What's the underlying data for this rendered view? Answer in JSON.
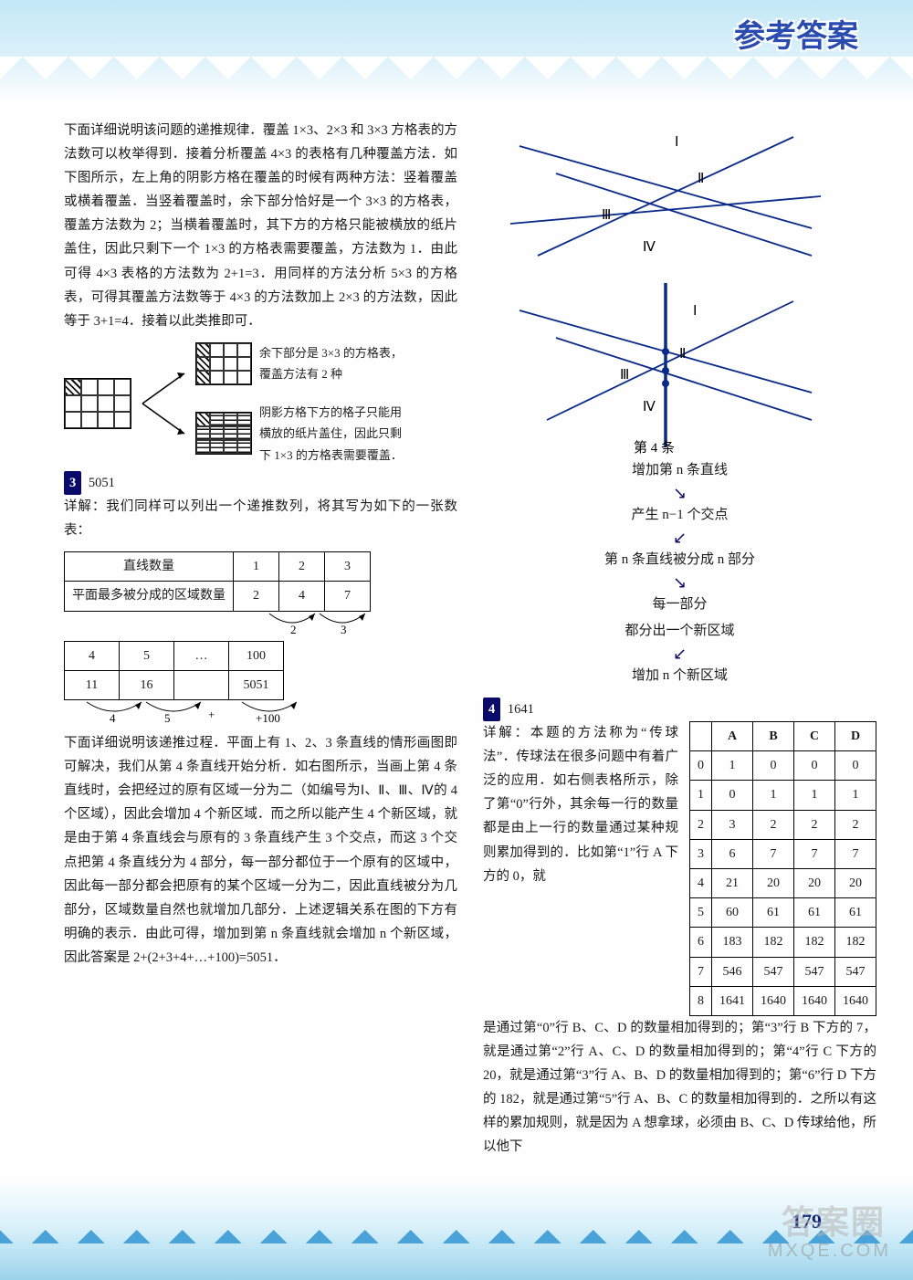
{
  "header": {
    "title": "参考答案"
  },
  "page_number": "179",
  "watermark": {
    "text": "答案圈",
    "url": "MXQE.COM"
  },
  "left": {
    "p1": "下面详细说明该问题的递推规律．覆盖 1×3、2×3 和 3×3 方格表的方法数可以枚举得到．接着分析覆盖 4×3 的表格有几种覆盖方法．如下图所示，左上角的阴影方格在覆盖的时候有两种方法：竖着覆盖或横着覆盖．当竖着覆盖时，余下部分恰好是一个 3×3 的方格表，覆盖方法数为 2；当横着覆盖时，其下方的方格只能被横放的纸片盖住，因此只剩下一个 1×3 的方格表需要覆盖，方法数为 1．由此可得 4×3 表格的方法数为 2+1=3．用同样的方法分析 5×3 的方格表，可得其覆盖方法数等于 4×3 的方法数加上 2×3 的方法数，因此等于 3+1=4．接着以此类推即可．",
    "fig_caption_a": "余下部分是 3×3 的方格表，覆盖方法有 2 种",
    "fig_caption_b": "阴影方格下方的格子只能用横放的纸片盖住，因此只剩下 1×3 的方格表需要覆盖．",
    "q3_num": "3",
    "q3_ans": "5051",
    "q3_detail": "详解：我们同样可以列出一个递推数列，将其写为如下的一张数表：",
    "table1": {
      "r1": [
        "直线数量",
        "1",
        "2",
        "3"
      ],
      "r2": [
        "平面最多被分成的区域数量",
        "2",
        "4",
        "7"
      ],
      "arcs": [
        "2",
        "3"
      ]
    },
    "table2": {
      "r1": [
        "4",
        "5",
        "…",
        "100"
      ],
      "r2": [
        "11",
        "16",
        "",
        "5051"
      ],
      "arcs": [
        "4",
        "5",
        "+",
        "+100"
      ]
    },
    "p2": "下面详细说明该递推过程．平面上有 1、2、3 条直线的情形画图即可解决，我们从第 4 条直线开始分析．如右图所示，当画上第 4 条直线时，会把经过的原有区域一分为二（如编号为Ⅰ、Ⅱ、Ⅲ、Ⅳ的 4 个区域），因此会增加 4 个新区域．而之所以能产生 4 个新区域，就是由于第 4 条直线会与原有的 3 条直线产生 3 个交点，而这 3 个交点把第 4 条直线分为 4 部分，每一部分都位于一个原有的区域中，因此每一部分都会把原有的某个区域一分为二，因此直线被分为几部分，区域数量自然也就增加几部分．上述逻辑关系在图的下方有明确的表示．由此可得，增加到第 n 条直线就会增加 n 个新区域，因此答案是 2+(2+3+4+…+100)=5051．"
  },
  "right": {
    "line_labels": [
      "Ⅰ",
      "Ⅱ",
      "Ⅲ",
      "Ⅳ"
    ],
    "fig_caption_c": "第 4 条",
    "flow": {
      "s1": "增加第 n 条直线",
      "s2": "产生 n−1 个交点",
      "s3": "第 n 条直线被分成 n 部分",
      "s4": "每一部分",
      "s5": "都分出一个新区域",
      "s6": "增加 n 个新区域"
    },
    "q4_num": "4",
    "q4_ans": "1641",
    "q4_detail_a": "详解：本题的方法称为“传球法”．传球法在很多问题中有着广泛的应用．如右侧表格所示，除了第“0”行外，其余每一行的数量都是由上一行的数量通过某种规则累加得到的．比如第“1”行 A 下方的 0，就",
    "q4_detail_b": "是通过第“0”行 B、C、D 的数量相加得到的；第“3”行 B 下方的 7，就是通过第“2”行 A、C、D 的数量相加得到的；第“4”行 C 下方的 20，就是通过第“3”行 A、B、D 的数量相加得到的；第“6”行 D 下方的 182，就是通过第“5”行 A、B、C 的数量相加得到的．之所以有这样的累加规则，就是因为 A 想拿球，必须由 B、C、D 传球给他，所以他下",
    "table4": {
      "head": [
        "",
        "A",
        "B",
        "C",
        "D"
      ],
      "rows": [
        [
          "0",
          "1",
          "0",
          "0",
          "0"
        ],
        [
          "1",
          "0",
          "1",
          "1",
          "1"
        ],
        [
          "2",
          "3",
          "2",
          "2",
          "2"
        ],
        [
          "3",
          "6",
          "7",
          "7",
          "7"
        ],
        [
          "4",
          "21",
          "20",
          "20",
          "20"
        ],
        [
          "5",
          "60",
          "61",
          "61",
          "61"
        ],
        [
          "6",
          "183",
          "182",
          "182",
          "182"
        ],
        [
          "7",
          "546",
          "547",
          "547",
          "547"
        ],
        [
          "8",
          "1641",
          "1640",
          "1640",
          "1640"
        ]
      ]
    }
  },
  "diagram": {
    "line_color": "#0a2a8a",
    "dot_color": "#0a2a8a",
    "bold_color": "#0a2a8a"
  }
}
